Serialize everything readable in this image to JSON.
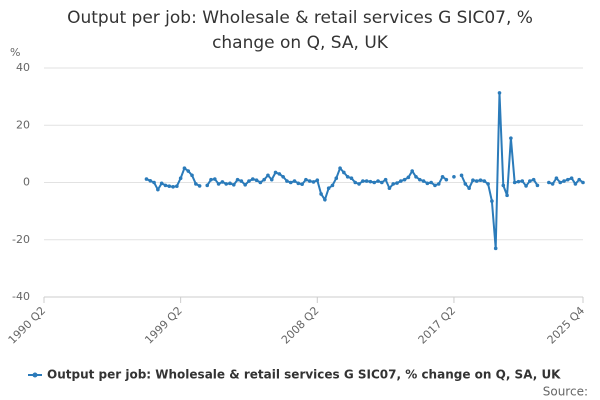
{
  "chart_data": {
    "type": "line",
    "title": "Output per job: Wholesale & retail services G SIC07, % change on Q, SA, UK",
    "y_label": "%",
    "source": "Source:",
    "categories": [
      "1990 Q2",
      null,
      null,
      null,
      null,
      null,
      null,
      null,
      null,
      null,
      null,
      null,
      null,
      null,
      null,
      null,
      null,
      null,
      null,
      null,
      null,
      null,
      null,
      null,
      null,
      null,
      null,
      null,
      null,
      null,
      null,
      null,
      null,
      null,
      null,
      null,
      "1999 Q2",
      null,
      null,
      null,
      null,
      null,
      null,
      null,
      null,
      null,
      null,
      null,
      null,
      null,
      null,
      null,
      null,
      null,
      null,
      null,
      null,
      null,
      null,
      null,
      null,
      null,
      null,
      null,
      null,
      null,
      null,
      null,
      null,
      null,
      null,
      null,
      "2008 Q2",
      null,
      null,
      null,
      null,
      null,
      null,
      null,
      null,
      null,
      null,
      null,
      null,
      null,
      null,
      null,
      null,
      null,
      null,
      null,
      null,
      null,
      null,
      null,
      null,
      null,
      null,
      null,
      null,
      null,
      null,
      null,
      null,
      null,
      null,
      null,
      "2017 Q2",
      null,
      null,
      null,
      null,
      null,
      null,
      null,
      null,
      null,
      null,
      null,
      null,
      null,
      null,
      null,
      null,
      null,
      null,
      null,
      null,
      null,
      null,
      null,
      null,
      null,
      null,
      null,
      null,
      null,
      null,
      null,
      null,
      null,
      "2025 Q4"
    ],
    "series": [
      {
        "name": "Output per job: Wholesale & retail services G SIC07, % change on Q, SA, UK",
        "color": "#2b7bba",
        "values": [
          null,
          null,
          null,
          null,
          null,
          null,
          null,
          null,
          null,
          null,
          null,
          null,
          null,
          null,
          null,
          null,
          null,
          null,
          null,
          null,
          null,
          null,
          null,
          null,
          null,
          null,
          null,
          1.2,
          0.6,
          0.0,
          -2.5,
          -0.3,
          -1.0,
          -1.3,
          -1.5,
          -1.3,
          1.5,
          5.0,
          4.0,
          2.5,
          -0.5,
          -1.2,
          null,
          -1.0,
          1.0,
          1.2,
          -0.5,
          0.2,
          -0.5,
          -0.3,
          -0.8,
          1.0,
          0.5,
          -0.8,
          0.5,
          1.2,
          0.8,
          0.0,
          1.0,
          2.5,
          1.0,
          3.5,
          3.0,
          2.0,
          0.5,
          0.0,
          0.5,
          -0.3,
          -0.6,
          1.0,
          0.5,
          0.2,
          0.8,
          -4.0,
          -6.0,
          -2.0,
          -1.0,
          1.5,
          5.0,
          3.5,
          2.0,
          1.5,
          0.0,
          -0.5,
          0.5,
          0.5,
          0.3,
          0.0,
          0.5,
          0.0,
          1.0,
          -2.0,
          -0.5,
          -0.2,
          0.5,
          1.0,
          1.8,
          4.0,
          2.0,
          1.0,
          0.5,
          -0.3,
          0.0,
          -1.0,
          -0.5,
          2.0,
          1.0,
          null,
          2.0,
          null,
          2.5,
          -0.5,
          -2.0,
          0.8,
          0.5,
          0.8,
          0.5,
          -0.5,
          -6.5,
          -23.0,
          31.3,
          -1.0,
          -4.5,
          15.5,
          0.0,
          0.3,
          0.5,
          -1.2,
          0.5,
          1.0,
          -1.0,
          null,
          null,
          0.0,
          -0.5,
          1.5,
          0.0,
          0.5,
          1.0,
          1.5,
          -0.5,
          1.0,
          0.0
        ]
      }
    ],
    "ylim": [
      -40,
      40
    ],
    "yticks": [
      -40,
      -20,
      0,
      20,
      40
    ],
    "grid": true,
    "legend": "bottom"
  }
}
